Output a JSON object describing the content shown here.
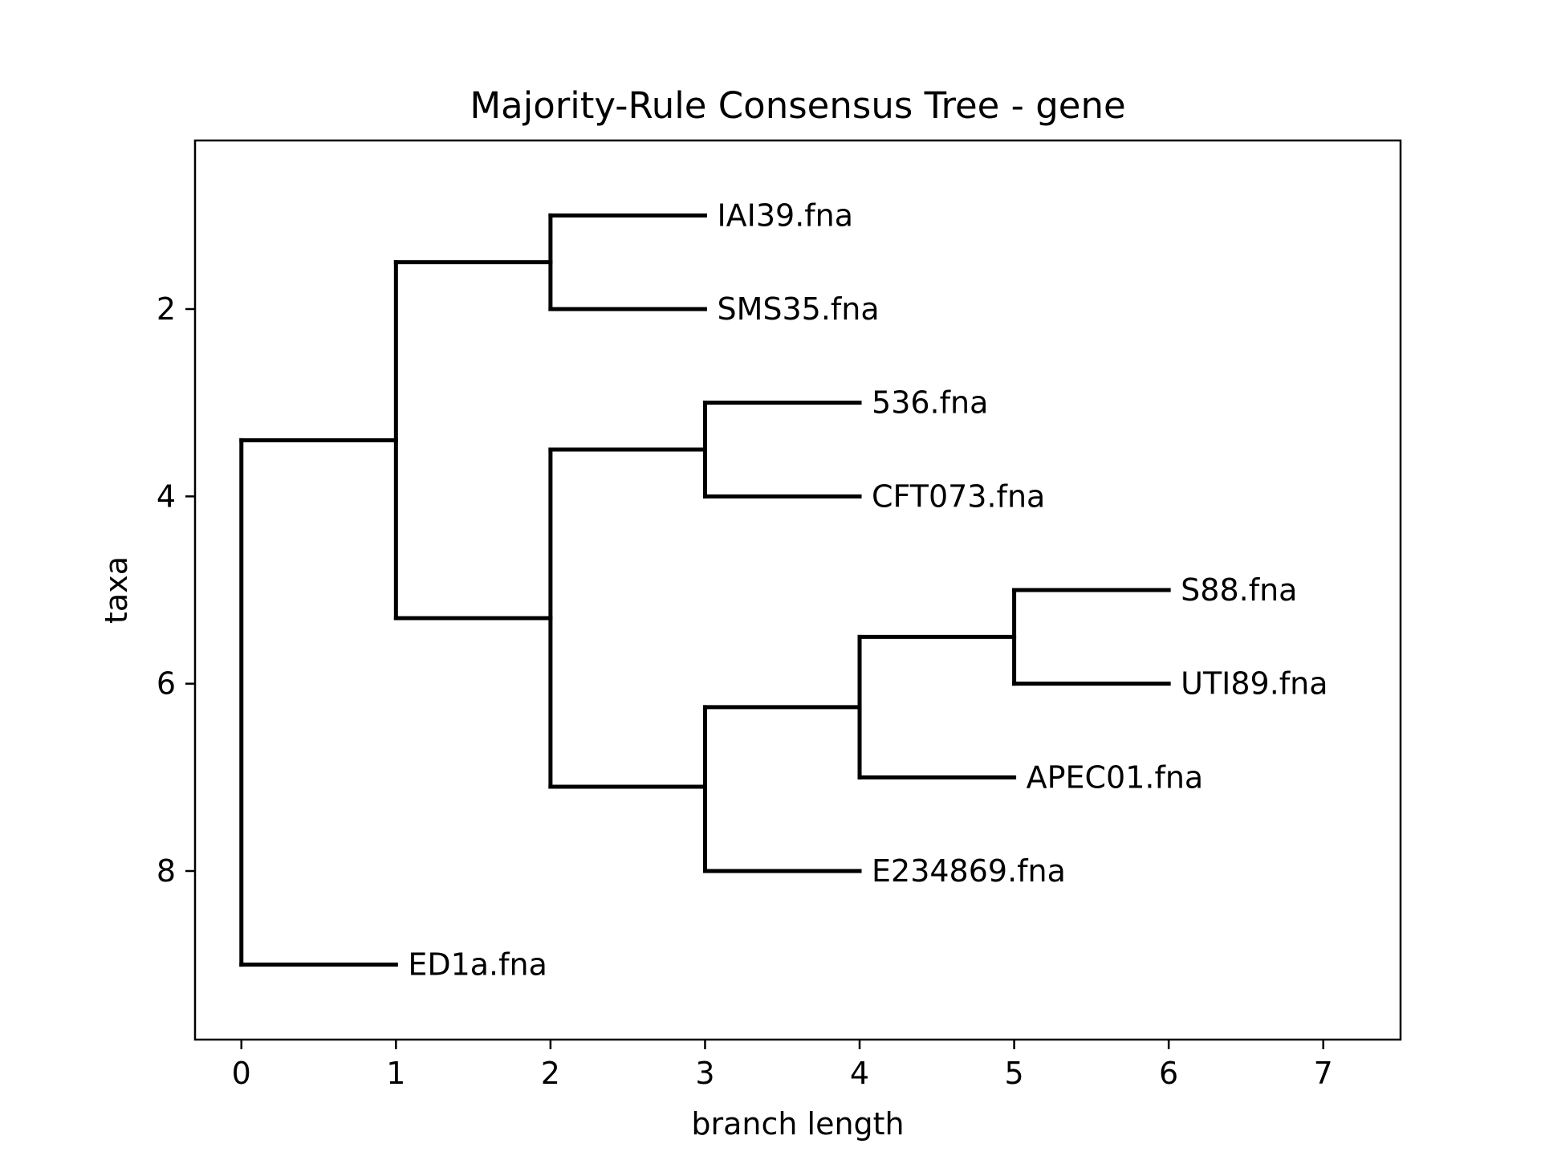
{
  "chart_data": {
    "type": "dendrogram",
    "title": "Majority-Rule Consensus Tree - gene",
    "xlabel": "branch length",
    "ylabel": "taxa",
    "xlim": [
      -0.3,
      7.5
    ],
    "ylim": [
      9.8,
      0.2
    ],
    "y_inverted": true,
    "grid": false,
    "x_ticks": [
      0,
      1,
      2,
      3,
      4,
      5,
      6,
      7
    ],
    "y_ticks": [
      2,
      4,
      6,
      8
    ],
    "leaves": [
      {
        "name": "IAI39.fna",
        "x": 3,
        "y": 1
      },
      {
        "name": "SMS35.fna",
        "x": 3,
        "y": 2
      },
      {
        "name": "536.fna",
        "x": 4,
        "y": 3
      },
      {
        "name": "CFT073.fna",
        "x": 4,
        "y": 4
      },
      {
        "name": "S88.fna",
        "x": 6,
        "y": 5
      },
      {
        "name": "UTI89.fna",
        "x": 6,
        "y": 6
      },
      {
        "name": "APEC01.fna",
        "x": 5,
        "y": 7
      },
      {
        "name": "E234869.fna",
        "x": 4,
        "y": 8
      },
      {
        "name": "ED1a.fna",
        "x": 1,
        "y": 9
      }
    ],
    "segments": [
      [
        0,
        3.4,
        0,
        9
      ],
      [
        0,
        3.4,
        1,
        3.4
      ],
      [
        0,
        9,
        1,
        9
      ],
      [
        1,
        1.5,
        1,
        5.3
      ],
      [
        1,
        1.5,
        2,
        1.5
      ],
      [
        1,
        5.3,
        2,
        5.3
      ],
      [
        2,
        1,
        2,
        2
      ],
      [
        2,
        1,
        3,
        1
      ],
      [
        2,
        2,
        3,
        2
      ],
      [
        2,
        3.5,
        2,
        7.1
      ],
      [
        2,
        3.5,
        3,
        3.5
      ],
      [
        2,
        7.1,
        3,
        7.1
      ],
      [
        3,
        3,
        3,
        4
      ],
      [
        3,
        3,
        4,
        3
      ],
      [
        3,
        4,
        4,
        4
      ],
      [
        3,
        6.25,
        3,
        8
      ],
      [
        3,
        6.25,
        4,
        6.25
      ],
      [
        3,
        8,
        4,
        8
      ],
      [
        4,
        5.5,
        4,
        7
      ],
      [
        4,
        5.5,
        5,
        5.5
      ],
      [
        4,
        7,
        5,
        7
      ],
      [
        5,
        5,
        5,
        6
      ],
      [
        5,
        5,
        6,
        5
      ],
      [
        5,
        6,
        6,
        6
      ]
    ]
  }
}
